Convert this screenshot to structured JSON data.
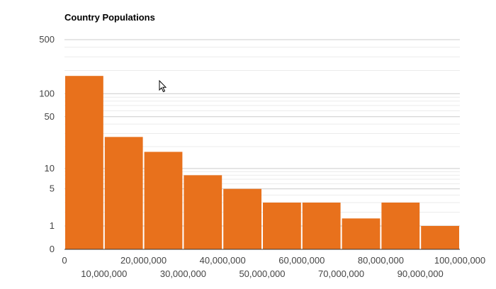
{
  "chart_data": {
    "type": "bar",
    "title": "Country Populations",
    "xlabel": "",
    "ylabel": "",
    "y_scale": "log",
    "x_range": [
      0,
      100000000
    ],
    "bin_width": 10000000,
    "bins": [
      {
        "start": 0,
        "end": 10000000,
        "count": 170
      },
      {
        "start": 10000000,
        "end": 20000000,
        "count": 27
      },
      {
        "start": 20000000,
        "end": 30000000,
        "count": 17
      },
      {
        "start": 30000000,
        "end": 40000000,
        "count": 8
      },
      {
        "start": 40000000,
        "end": 50000000,
        "count": 5
      },
      {
        "start": 50000000,
        "end": 60000000,
        "count": 3
      },
      {
        "start": 60000000,
        "end": 70000000,
        "count": 3
      },
      {
        "start": 70000000,
        "end": 80000000,
        "count": 1.5
      },
      {
        "start": 80000000,
        "end": 90000000,
        "count": 3
      },
      {
        "start": 90000000,
        "end": 100000000,
        "count": 1
      }
    ],
    "y_ticks": [
      {
        "value": 0,
        "label": "0"
      },
      {
        "value": 1,
        "label": "1"
      },
      {
        "value": 5,
        "label": "5"
      },
      {
        "value": 10,
        "label": "10"
      },
      {
        "value": 50,
        "label": "50"
      },
      {
        "value": 100,
        "label": "100"
      },
      {
        "value": 500,
        "label": "500"
      }
    ],
    "x_ticks_upper": [
      {
        "value": 0,
        "label": "0"
      },
      {
        "value": 20000000,
        "label": "20,000,000"
      },
      {
        "value": 40000000,
        "label": "40,000,000"
      },
      {
        "value": 60000000,
        "label": "60,000,000"
      },
      {
        "value": 80000000,
        "label": "80,000,000"
      },
      {
        "value": 100000000,
        "label": "100,000,000"
      }
    ],
    "x_ticks_lower": [
      {
        "value": 10000000,
        "label": "10,000,000"
      },
      {
        "value": 30000000,
        "label": "30,000,000"
      },
      {
        "value": 50000000,
        "label": "50,000,000"
      },
      {
        "value": 70000000,
        "label": "70,000,000"
      },
      {
        "value": 90000000,
        "label": "90,000,000"
      }
    ],
    "grid": true,
    "legend": "none",
    "colors": {
      "bar": "#e8711c",
      "bar_border": "#ffffff",
      "grid_major": "#cccccc",
      "grid_minor": "#ebebeb",
      "baseline": "#333333",
      "axis_text": "#444444",
      "title_text": "#000000"
    }
  },
  "cursor": {
    "icon": "mouse-pointer-icon"
  }
}
